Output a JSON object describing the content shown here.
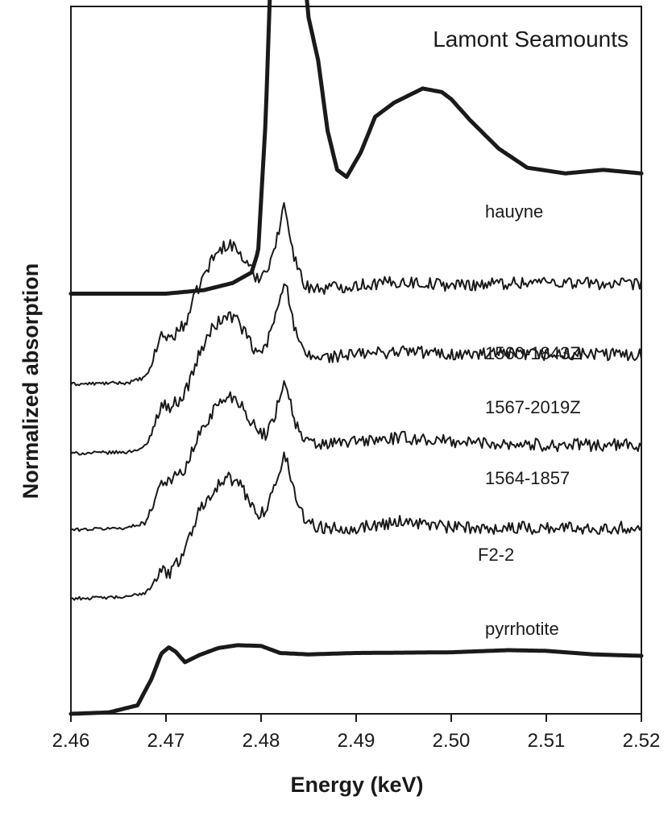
{
  "chart_data": {
    "type": "line",
    "title": "Lamont Seamounts",
    "xlabel": "Energy (keV)",
    "ylabel": "Normalized absorption",
    "xlim": [
      2.46,
      2.52
    ],
    "x_ticks": [
      "2.46",
      "2.47",
      "2.48",
      "2.49",
      "2.50",
      "2.51",
      "2.52"
    ],
    "ylim": [
      0,
      1
    ],
    "grid": false,
    "legend": "none",
    "series": [
      {
        "name": "hauyne",
        "style": "thick",
        "offset": 0.594,
        "x": [
          2.46,
          2.465,
          2.47,
          2.474,
          2.477,
          2.479,
          2.4797,
          2.4805,
          2.4815,
          2.482,
          2.4825,
          2.4832,
          2.484,
          2.485,
          2.486,
          2.487,
          2.488,
          2.489,
          2.4905,
          2.492,
          2.494,
          2.497,
          2.499,
          2.5,
          2.502,
          2.505,
          2.508,
          2.512,
          2.516,
          2.52
        ],
        "y": [
          0.0,
          0.0,
          0.0,
          0.005,
          0.015,
          0.03,
          0.06,
          0.25,
          0.65,
          0.83,
          0.84,
          0.76,
          0.53,
          0.39,
          0.33,
          0.23,
          0.175,
          0.165,
          0.2,
          0.25,
          0.27,
          0.29,
          0.285,
          0.275,
          0.245,
          0.205,
          0.178,
          0.17,
          0.175,
          0.17
        ]
      },
      {
        "name": "1560-1843Z",
        "style": "thin",
        "offset": 0.466,
        "x": [
          2.46,
          2.466,
          2.468,
          2.4695,
          2.4705,
          2.472,
          2.4735,
          2.475,
          2.4765,
          2.4775,
          2.4785,
          2.4795,
          2.4805,
          2.4815,
          2.4825,
          2.4835,
          2.4845,
          2.486,
          2.49,
          2.495,
          2.5,
          2.51,
          2.52
        ],
        "y": [
          0.0,
          0.002,
          0.01,
          0.07,
          0.065,
          0.085,
          0.14,
          0.18,
          0.2,
          0.19,
          0.17,
          0.15,
          0.16,
          0.195,
          0.255,
          0.18,
          0.14,
          0.135,
          0.14,
          0.145,
          0.14,
          0.145,
          0.14
        ]
      },
      {
        "name": "1567-2019Z",
        "style": "thin",
        "offset": 0.368,
        "x": [
          2.46,
          2.466,
          2.468,
          2.4695,
          2.4705,
          2.472,
          2.4735,
          2.475,
          2.4765,
          2.4775,
          2.4785,
          2.4795,
          2.4805,
          2.4815,
          2.4825,
          2.4835,
          2.4845,
          2.486,
          2.49,
          2.495,
          2.5,
          2.51,
          2.52
        ],
        "y": [
          0.0,
          0.002,
          0.01,
          0.07,
          0.065,
          0.085,
          0.14,
          0.18,
          0.195,
          0.19,
          0.165,
          0.14,
          0.15,
          0.195,
          0.25,
          0.175,
          0.14,
          0.135,
          0.14,
          0.145,
          0.14,
          0.14,
          0.14
        ]
      },
      {
        "name": "1564-1857",
        "style": "thin",
        "offset": 0.26,
        "x": [
          2.46,
          2.466,
          2.468,
          2.4695,
          2.4705,
          2.472,
          2.4735,
          2.475,
          2.4765,
          2.4775,
          2.4785,
          2.4795,
          2.4805,
          2.4815,
          2.4825,
          2.4835,
          2.4845,
          2.486,
          2.49,
          2.495,
          2.5,
          2.51,
          2.52
        ],
        "y": [
          0.0,
          0.003,
          0.012,
          0.07,
          0.07,
          0.085,
          0.135,
          0.17,
          0.19,
          0.185,
          0.165,
          0.14,
          0.135,
          0.165,
          0.215,
          0.155,
          0.125,
          0.12,
          0.125,
          0.13,
          0.125,
          0.12,
          0.12
        ]
      },
      {
        "name": "F2-2",
        "style": "thin",
        "offset": 0.163,
        "x": [
          2.46,
          2.466,
          2.468,
          2.4695,
          2.4705,
          2.472,
          2.4735,
          2.475,
          2.4765,
          2.4775,
          2.4785,
          2.4795,
          2.4805,
          2.4815,
          2.4825,
          2.4835,
          2.4845,
          2.486,
          2.49,
          2.495,
          2.5,
          2.51,
          2.52
        ],
        "y": [
          0.0,
          0.002,
          0.01,
          0.04,
          0.035,
          0.07,
          0.125,
          0.155,
          0.17,
          0.165,
          0.145,
          0.12,
          0.125,
          0.16,
          0.205,
          0.15,
          0.115,
          0.1,
          0.1,
          0.11,
          0.1,
          0.1,
          0.1
        ]
      },
      {
        "name": "pyrrhotite",
        "style": "thick",
        "offset": 0.0,
        "x": [
          2.46,
          2.464,
          2.467,
          2.4685,
          2.4695,
          2.4703,
          2.471,
          2.472,
          2.4735,
          2.4755,
          2.4775,
          2.48,
          2.482,
          2.485,
          2.49,
          2.5,
          2.506,
          2.51,
          2.515,
          2.52
        ],
        "y": [
          0.0,
          0.002,
          0.012,
          0.05,
          0.085,
          0.094,
          0.088,
          0.073,
          0.083,
          0.093,
          0.097,
          0.096,
          0.086,
          0.084,
          0.086,
          0.087,
          0.09,
          0.089,
          0.084,
          0.082
        ]
      }
    ]
  }
}
